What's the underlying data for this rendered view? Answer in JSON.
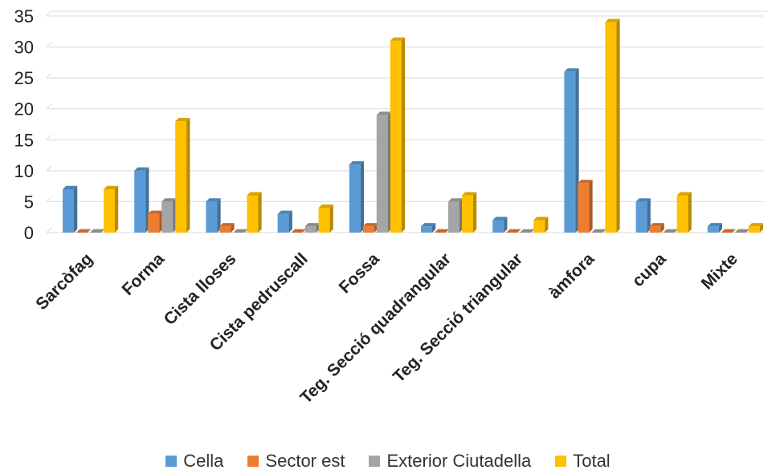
{
  "chart_data": {
    "type": "bar",
    "categories": [
      "Sarcòfag",
      "Forma",
      "Cista lloses",
      "Cista pedruscall",
      "Fossa",
      "Teg. Secció quadrangular",
      "Teg. Secció triangular",
      "àmfora",
      "cupa",
      "Mixte"
    ],
    "series": [
      {
        "name": "Cella",
        "color": "#5B9BD5",
        "values": [
          7,
          10,
          5,
          3,
          11,
          1,
          2,
          26,
          5,
          1
        ]
      },
      {
        "name": "Sector est",
        "color": "#ED7D31",
        "values": [
          0,
          3,
          1,
          0,
          1,
          0,
          0,
          8,
          1,
          0
        ]
      },
      {
        "name": "Exterior Ciutadella",
        "color": "#A5A5A5",
        "values": [
          0,
          5,
          0,
          1,
          19,
          5,
          0,
          0,
          0,
          0
        ]
      },
      {
        "name": "Total",
        "color": "#FFC000",
        "values": [
          7,
          18,
          6,
          4,
          31,
          6,
          2,
          34,
          6,
          1
        ]
      }
    ],
    "y_ticks": [
      "0",
      "5",
      "10",
      "15",
      "20",
      "25",
      "30",
      "35"
    ],
    "ylim": [
      0,
      35
    ],
    "grid": true,
    "legend_position": "bottom",
    "title": "",
    "xlabel": "",
    "ylabel": ""
  }
}
